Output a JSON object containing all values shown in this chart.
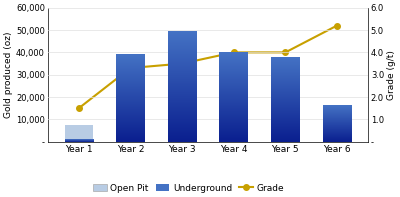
{
  "categories": [
    "Year 1",
    "Year 2",
    "Year 3",
    "Year 4",
    "Year 5",
    "Year 6"
  ],
  "open_pit": [
    7500,
    0,
    0,
    0,
    0,
    0
  ],
  "underground": [
    1200,
    39000,
    49500,
    40000,
    38000,
    16500
  ],
  "grade": [
    1.5,
    3.3,
    3.5,
    4.0,
    4.0,
    5.2
  ],
  "bar_color_underground_top": "#4472c4",
  "bar_color_underground_bottom": "#0a1f8f",
  "bar_color_open_pit": "#b8cce4",
  "grade_color": "#c8a000",
  "ylabel_left": "Gold produced (oz)",
  "ylabel_right": "Grade (g/t)",
  "ylim_left": [
    0,
    60000
  ],
  "ylim_right": [
    0,
    6.0
  ],
  "yticks_left": [
    0,
    10000,
    20000,
    30000,
    40000,
    50000,
    60000
  ],
  "yticks_right": [
    0,
    1.0,
    2.0,
    3.0,
    4.0,
    5.0,
    6.0
  ],
  "yticklabels_left": [
    "-",
    "10,000",
    "20,000",
    "30,000",
    "40,000",
    "50,000",
    "60,000"
  ],
  "yticklabels_right": [
    "-",
    "1.0",
    "2.0",
    "3.0",
    "4.0",
    "5.0",
    "6.0"
  ],
  "legend_labels": [
    "Open Pit",
    "Underground",
    "Grade"
  ],
  "background_color": "#ffffff",
  "bar_width": 0.55,
  "figsize": [
    4.0,
    1.97
  ],
  "dpi": 100
}
